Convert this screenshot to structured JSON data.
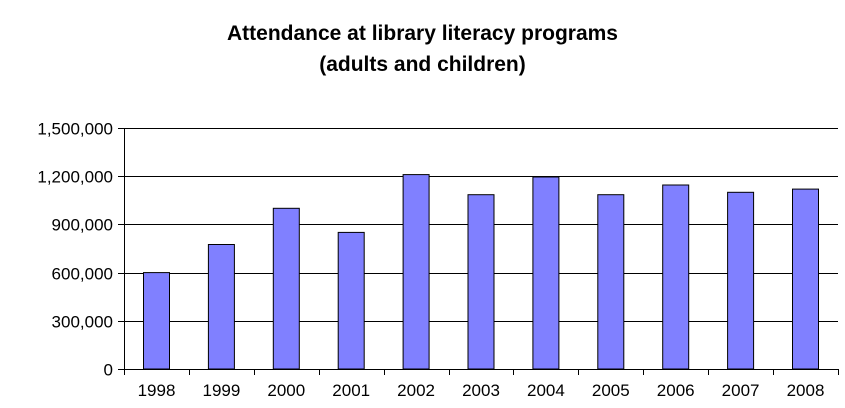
{
  "chart_data": {
    "type": "bar",
    "title_lines": [
      "Attendance at library literacy programs",
      "(adults and children)"
    ],
    "categories": [
      "1998",
      "1999",
      "2000",
      "2001",
      "2002",
      "2003",
      "2004",
      "2005",
      "2006",
      "2007",
      "2008"
    ],
    "values": [
      600000,
      775000,
      1000000,
      850000,
      1210000,
      1085000,
      1195000,
      1085000,
      1145000,
      1100000,
      1120000
    ],
    "ylim": [
      0,
      1500000
    ],
    "yticks": [
      0,
      300000,
      600000,
      900000,
      1200000,
      1500000
    ],
    "ytick_labels": [
      "0",
      "300,000",
      "600,000",
      "900,000",
      "1,200,000",
      "1,500,000"
    ],
    "grid": true,
    "colors": {
      "bar_fill": "#8080ff",
      "bar_stroke": "#000000",
      "grid": "#000000"
    }
  }
}
